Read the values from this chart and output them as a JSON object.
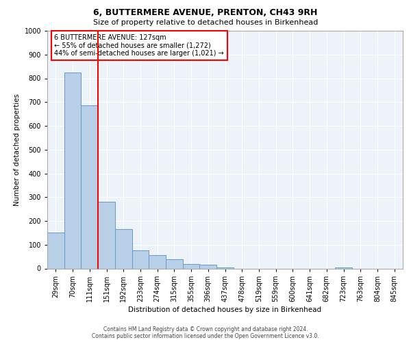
{
  "title": "6, BUTTERMERE AVENUE, PRENTON, CH43 9RH",
  "subtitle": "Size of property relative to detached houses in Birkenhead",
  "xlabel": "Distribution of detached houses by size in Birkenhead",
  "ylabel": "Number of detached properties",
  "bin_labels": [
    "29sqm",
    "70sqm",
    "111sqm",
    "151sqm",
    "192sqm",
    "233sqm",
    "274sqm",
    "315sqm",
    "355sqm",
    "396sqm",
    "437sqm",
    "478sqm",
    "519sqm",
    "559sqm",
    "600sqm",
    "641sqm",
    "682sqm",
    "723sqm",
    "763sqm",
    "804sqm",
    "845sqm"
  ],
  "bar_values": [
    150,
    825,
    685,
    280,
    165,
    75,
    55,
    40,
    20,
    15,
    5,
    0,
    0,
    0,
    0,
    0,
    0,
    5,
    0,
    0,
    0
  ],
  "bar_color": "#b8cfe8",
  "bar_edge_color": "#6699cc",
  "vline_x": 2.5,
  "vline_color": "red",
  "annotation_text": "6 BUTTERMERE AVENUE: 127sqm\n← 55% of detached houses are smaller (1,272)\n44% of semi-detached houses are larger (1,021) →",
  "annotation_box_color": "white",
  "annotation_box_edge_color": "red",
  "ylim": [
    0,
    1000
  ],
  "yticks": [
    0,
    100,
    200,
    300,
    400,
    500,
    600,
    700,
    800,
    900,
    1000
  ],
  "footer_line1": "Contains HM Land Registry data © Crown copyright and database right 2024.",
  "footer_line2": "Contains public sector information licensed under the Open Government Licence v3.0.",
  "bg_color": "#eef2f9",
  "grid_color": "white",
  "title_fontsize": 9,
  "subtitle_fontsize": 8,
  "ylabel_fontsize": 7.5,
  "xlabel_fontsize": 7.5,
  "tick_fontsize": 7,
  "annotation_fontsize": 7,
  "footer_fontsize": 5.5
}
